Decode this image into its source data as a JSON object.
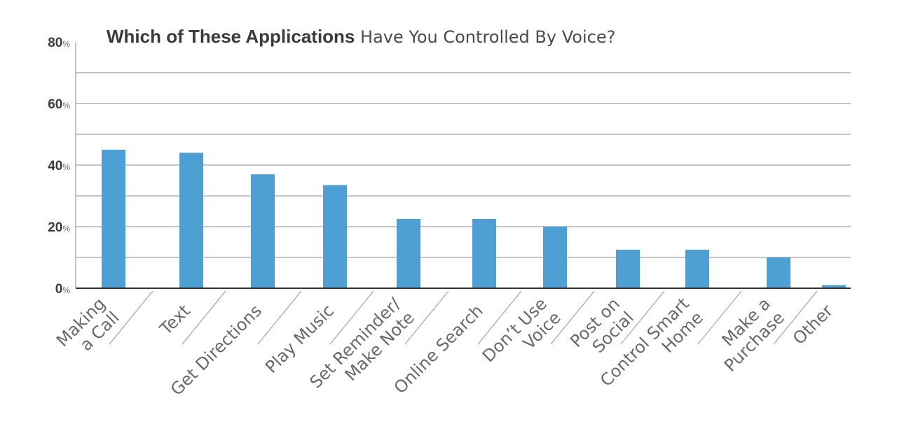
{
  "chart_data": {
    "type": "bar",
    "title_bold": "Which of These Applications",
    "title_rest": " Have You Controlled By Voice?",
    "categories": [
      [
        "Making",
        "a Call"
      ],
      [
        "Text"
      ],
      [
        "Get Directions"
      ],
      [
        "Play Music"
      ],
      [
        "Set Reminder/",
        "Make Note"
      ],
      [
        "Online Search"
      ],
      [
        "Don’t Use",
        "Voice"
      ],
      [
        "Post on",
        "Social"
      ],
      [
        "Control Smart",
        "Home"
      ],
      [
        "Make a",
        "Purchase"
      ],
      [
        "Other"
      ]
    ],
    "values": [
      45,
      44,
      37,
      33.5,
      22.5,
      22.5,
      20,
      12.5,
      12.5,
      10,
      1
    ],
    "ylim": [
      0,
      80
    ],
    "y_ticks": [
      {
        "value": 0,
        "num": "0",
        "unit": "%"
      },
      {
        "value": 20,
        "num": "20",
        "unit": "%"
      },
      {
        "value": 40,
        "num": "40",
        "unit": "%"
      },
      {
        "value": 60,
        "num": "60",
        "unit": "%"
      },
      {
        "value": 80,
        "num": "80",
        "unit": "%"
      }
    ],
    "gridlines": [
      10,
      20,
      30,
      40,
      50,
      60,
      70
    ],
    "grid": true,
    "bar_color": "#4e9fd4"
  }
}
